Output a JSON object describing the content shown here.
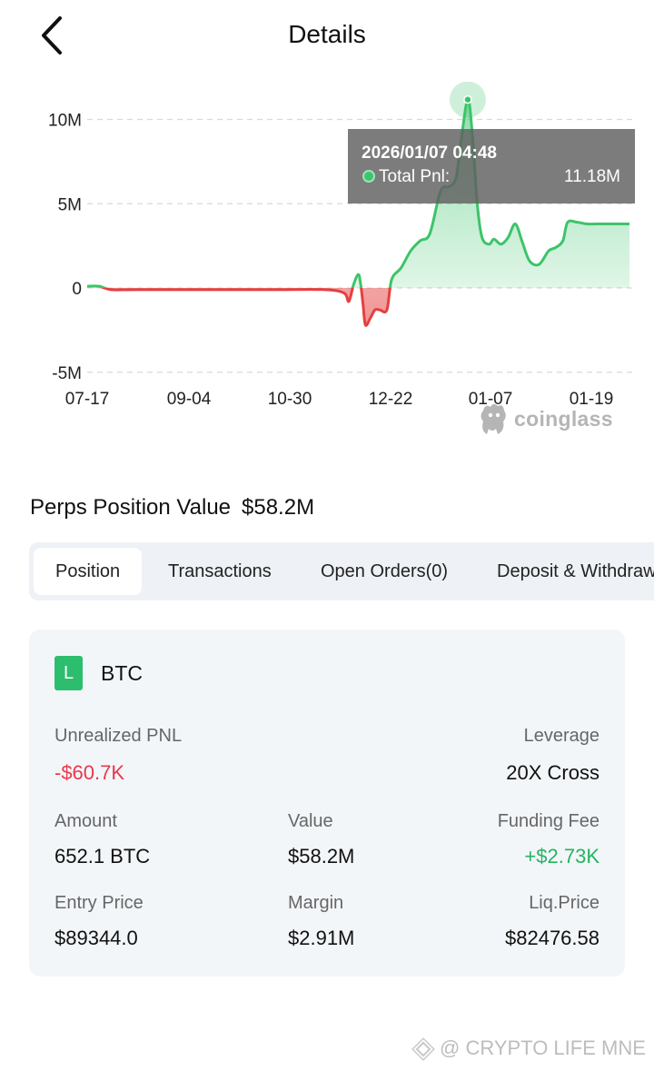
{
  "header": {
    "title": "Details",
    "back_icon": "chevron-left-icon"
  },
  "chart_data": {
    "type": "area",
    "title": "",
    "xlabel": "",
    "ylabel": "",
    "y_ticks": [
      "10M",
      "5M",
      "0",
      "-5M"
    ],
    "y_tick_values": [
      10,
      5,
      0,
      -5
    ],
    "x_ticks": [
      "07-17",
      "09-04",
      "10-30",
      "12-22",
      "01-07",
      "01-19"
    ],
    "ylim": [
      -5,
      10
    ],
    "unit": "M",
    "grid": true,
    "colors": {
      "positive": "#3cc46a",
      "negative": "#e53f3f"
    },
    "series": [
      {
        "values_x_index": [
          0,
          0.25,
          0.5,
          1,
          2,
          3,
          4,
          5,
          5.4,
          5.5,
          5.6,
          5.7,
          5.75,
          5.8,
          5.85,
          5.95,
          6.05,
          6.15,
          6.3,
          6.4,
          6.6,
          6.8,
          7.0,
          7.2,
          7.4,
          7.5,
          7.6,
          7.75,
          7.85,
          8.0,
          8.1,
          8.2,
          8.3,
          8.45,
          8.55,
          8.7,
          8.85,
          9.0,
          9.15,
          9.3,
          9.5,
          9.7,
          9.85,
          10.0,
          10.1,
          10.3,
          10.5,
          10.7,
          10.9,
          11.0,
          11.2,
          11.4
        ],
        "values": [
          0.1,
          0.1,
          -0.1,
          -0.1,
          -0.1,
          -0.1,
          -0.1,
          -0.1,
          -0.3,
          -0.8,
          0.2,
          0.8,
          0.2,
          -1.0,
          -2.2,
          -1.8,
          -1.3,
          -1.3,
          -1.3,
          0.5,
          1.2,
          2.2,
          2.8,
          3.2,
          5.5,
          6.0,
          6.0,
          6.5,
          8.5,
          11.18,
          9.0,
          5.0,
          3.0,
          2.6,
          2.9,
          2.6,
          3.0,
          3.8,
          2.7,
          1.6,
          1.4,
          2.2,
          2.4,
          2.8,
          3.9,
          3.9,
          3.8,
          3.8,
          3.8,
          3.8,
          3.8,
          3.8
        ]
      }
    ],
    "tooltip": {
      "date": "2026/01/07 04:48",
      "label": "Total Pnl:",
      "value": "11.18M"
    },
    "watermark": "coinglass"
  },
  "position_value": {
    "label": "Perps Position Value",
    "value": "$58.2M"
  },
  "tabs": [
    {
      "label": "Position",
      "active": true
    },
    {
      "label": "Transactions",
      "active": false
    },
    {
      "label": "Open Orders(0)",
      "active": false
    },
    {
      "label": "Deposit & Withdraw",
      "active": false
    }
  ],
  "card": {
    "badge": "L",
    "symbol": "BTC",
    "unrealized_pnl": {
      "label": "Unrealized PNL",
      "value": "-$60.7K"
    },
    "leverage": {
      "label": "Leverage",
      "value": "20X Cross"
    },
    "amount": {
      "label": "Amount",
      "value": "652.1 BTC"
    },
    "value": {
      "label": "Value",
      "value": "$58.2M"
    },
    "funding_fee": {
      "label": "Funding Fee",
      "value": "+$2.73K"
    },
    "entry_price": {
      "label": "Entry Price",
      "value": "$89344.0"
    },
    "margin": {
      "label": "Margin",
      "value": "$2.91M"
    },
    "liq_price": {
      "label": "Liq.Price",
      "value": "$82476.58"
    }
  },
  "footer_watermark": "@ CRYPTO LIFE MNE"
}
